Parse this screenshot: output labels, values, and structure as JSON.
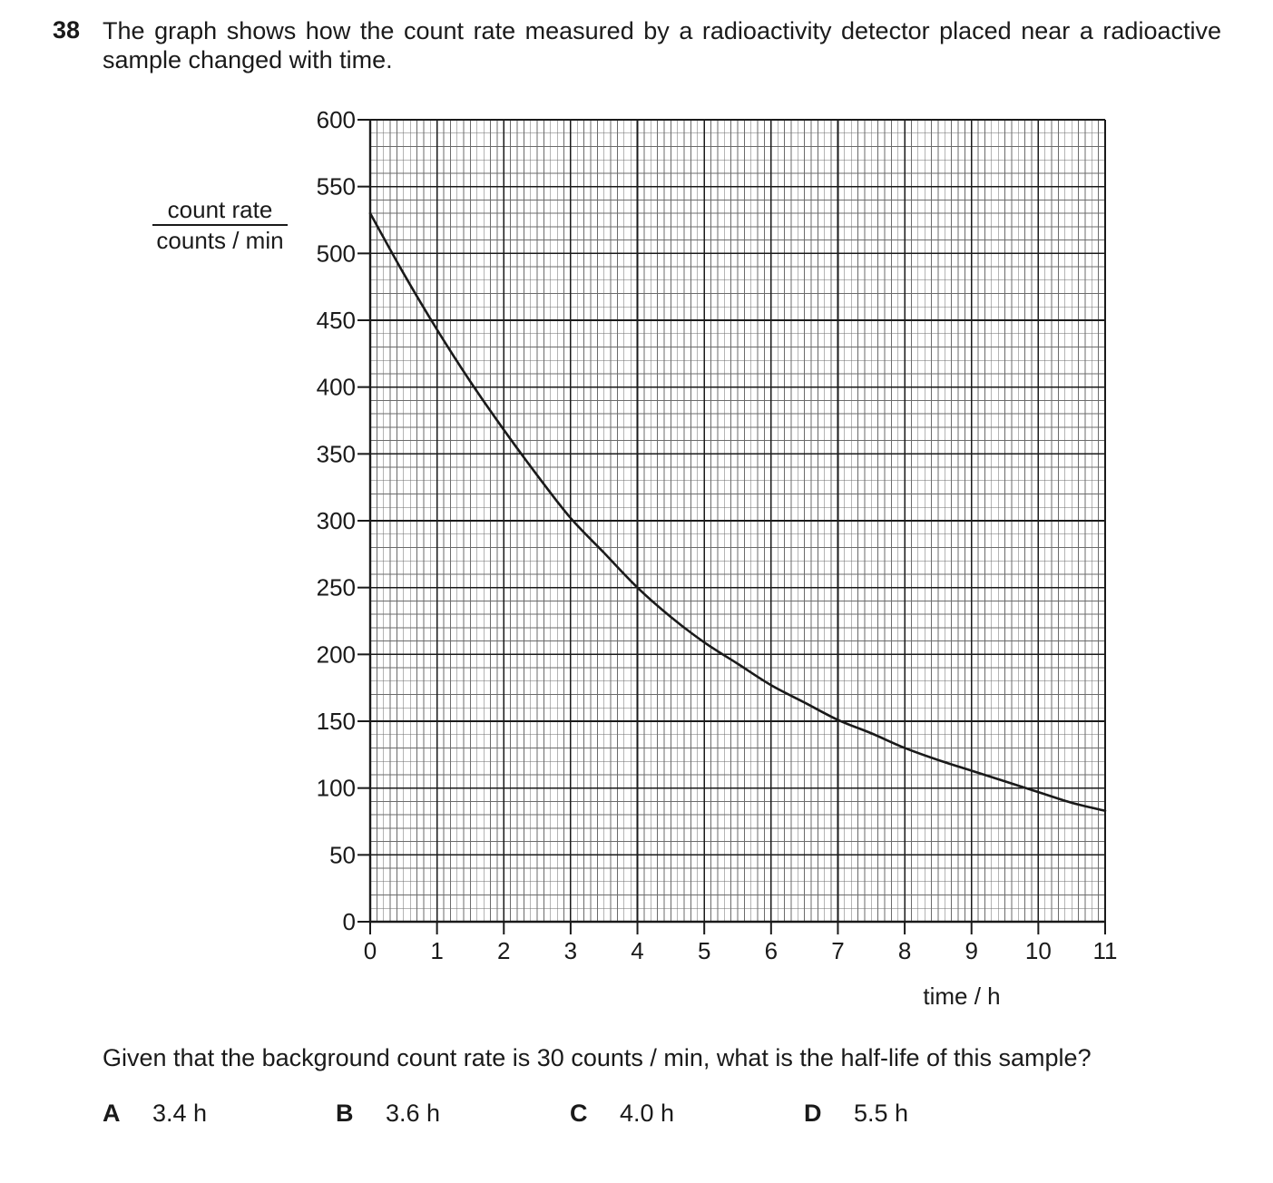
{
  "question": {
    "number": "38",
    "stem": "The graph shows how the count rate measured by a radioactivity detector placed near a radioactive sample changed with time.",
    "prompt": "Given that the background count rate is 30 counts / min, what is the half-life of this sample?",
    "options": [
      {
        "letter": "A",
        "text": "3.4 h"
      },
      {
        "letter": "B",
        "text": "3.6 h"
      },
      {
        "letter": "C",
        "text": "4.0 h"
      },
      {
        "letter": "D",
        "text": "5.5 h"
      }
    ]
  },
  "chart_data": {
    "type": "line",
    "title": "",
    "xlabel": "time / h",
    "ylabel_numerator": "count rate",
    "ylabel_denominator": "counts / min",
    "xlim": [
      0,
      11
    ],
    "ylim": [
      0,
      600
    ],
    "xticks": [
      0,
      1,
      2,
      3,
      4,
      5,
      6,
      7,
      8,
      9,
      10,
      11
    ],
    "yticks": [
      0,
      50,
      100,
      150,
      200,
      250,
      300,
      350,
      400,
      450,
      500,
      550,
      600
    ],
    "grid": true,
    "series": [
      {
        "x": [
          0,
          0.5,
          1,
          1.5,
          2,
          2.5,
          3,
          3.5,
          4,
          4.5,
          5,
          5.5,
          6,
          6.5,
          7,
          7.5,
          8,
          8.5,
          9,
          9.5,
          10,
          10.5,
          11
        ],
        "y": [
          530,
          485,
          443,
          404,
          368,
          334,
          302,
          276,
          250,
          228,
          209,
          193,
          177,
          164,
          151,
          141,
          130,
          121,
          113,
          105,
          97,
          89,
          83
        ]
      }
    ]
  }
}
